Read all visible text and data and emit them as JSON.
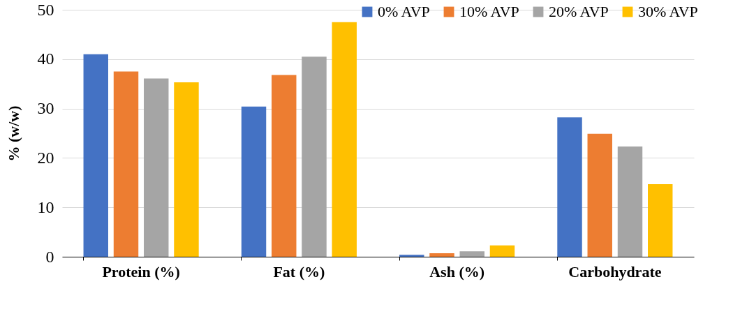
{
  "chart_data": {
    "type": "bar",
    "ylabel": "% (w/w)",
    "categories": [
      "Protein (%)",
      "Fat (%)",
      "Ash (%)",
      "Carbohydrate"
    ],
    "series": [
      {
        "name": "0% AVP",
        "color": "#4472c4",
        "values": [
          41.0,
          30.4,
          0.4,
          28.2
        ]
      },
      {
        "name": "10% AVP",
        "color": "#ed7d31",
        "values": [
          37.5,
          36.8,
          0.7,
          24.9
        ]
      },
      {
        "name": "20% AVP",
        "color": "#a5a5a5",
        "values": [
          36.1,
          40.5,
          1.1,
          22.3
        ]
      },
      {
        "name": "30% AVP",
        "color": "#ffc000",
        "values": [
          35.3,
          47.5,
          2.3,
          14.7
        ]
      }
    ],
    "ylim": [
      0,
      50
    ],
    "yticks": [
      0,
      10,
      20,
      30,
      40,
      50
    ],
    "grid": "y",
    "legend": "top right"
  }
}
